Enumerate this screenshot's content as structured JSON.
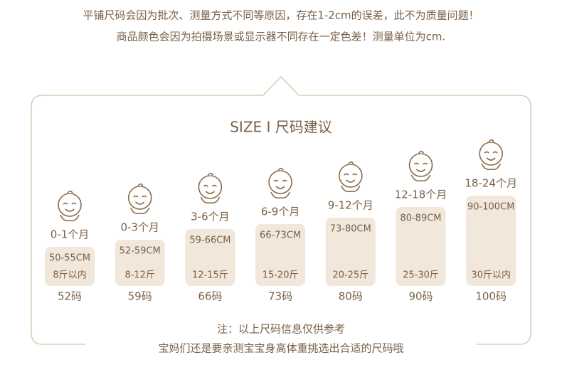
{
  "header": {
    "lines": [
      "平铺尺码会因为批次、测量方式不同等原因，存在1-2cm的误差，此不为质量问题！",
      "商品颜色会因为拍摄场景或显示器不同存在一定色差！测量单位为cm."
    ]
  },
  "title": "SIZE Ⅰ 尺码建议",
  "sizes": [
    {
      "age": "0-1个月",
      "height": "50-55CM",
      "weight": "8斤以内",
      "code": "52码"
    },
    {
      "age": "0-3个月",
      "height": "52-59CM",
      "weight": "8-12斤",
      "code": "59码"
    },
    {
      "age": "3-6个月",
      "height": "59-66CM",
      "weight": "12-15斤",
      "code": "66码"
    },
    {
      "age": "6-9个月",
      "height": "66-73CM",
      "weight": "15-20斤",
      "code": "73码"
    },
    {
      "age": "9-12个月",
      "height": "73-80CM",
      "weight": "20-25斤",
      "code": "80码"
    },
    {
      "age": "12-18个月",
      "height": "80-89CM",
      "weight": "25-30斤",
      "code": "90码"
    },
    {
      "age": "18-24个月",
      "height": "90-100CM",
      "weight": "30斤以内",
      "code": "100码"
    }
  ],
  "notes": [
    "注：以上尺码信息仅供参考",
    "宝妈们还是要亲测宝宝身高体重挑选出合适的尺码哦"
  ]
}
